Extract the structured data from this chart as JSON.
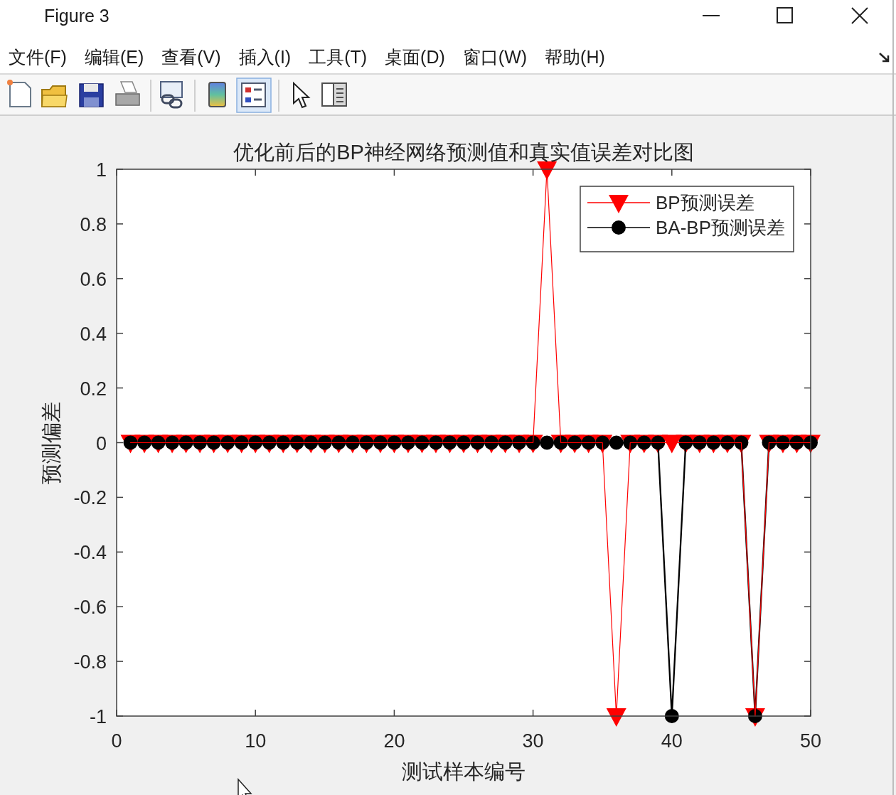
{
  "chart_data": {
    "type": "line",
    "title": "优化前后的BP神经网络预测值和真实值误差对比图",
    "xlabel": "测试样本编号",
    "ylabel": "预测偏差",
    "x": [
      1,
      2,
      3,
      4,
      5,
      6,
      7,
      8,
      9,
      10,
      11,
      12,
      13,
      14,
      15,
      16,
      17,
      18,
      19,
      20,
      21,
      22,
      23,
      24,
      25,
      26,
      27,
      28,
      29,
      30,
      31,
      32,
      33,
      34,
      35,
      36,
      37,
      38,
      39,
      40,
      41,
      42,
      43,
      44,
      45,
      46,
      47,
      48,
      49,
      50
    ],
    "series": [
      {
        "name": "BP预测误差",
        "color": "#ff0000",
        "marker": "triangle",
        "values": [
          0,
          0,
          0,
          0,
          0,
          0,
          0,
          0,
          0,
          0,
          0,
          0,
          0,
          0,
          0,
          0,
          0,
          0,
          0,
          0,
          0,
          0,
          0,
          0,
          0,
          0,
          0,
          0,
          0,
          0,
          1,
          0,
          0,
          0,
          0,
          -1,
          0,
          0,
          0,
          0,
          0,
          0,
          0,
          0,
          0,
          -1,
          0,
          0,
          0,
          0
        ]
      },
      {
        "name": "BA-BP预测误差",
        "color": "#000000",
        "marker": "circle",
        "values": [
          0,
          0,
          0,
          0,
          0,
          0,
          0,
          0,
          0,
          0,
          0,
          0,
          0,
          0,
          0,
          0,
          0,
          0,
          0,
          0,
          0,
          0,
          0,
          0,
          0,
          0,
          0,
          0,
          0,
          0,
          0,
          0,
          0,
          0,
          0,
          0,
          0,
          0,
          0,
          -1,
          0,
          0,
          0,
          0,
          0,
          -1,
          0,
          0,
          0,
          0
        ]
      }
    ],
    "xlim": [
      0,
      50
    ],
    "ylim": [
      -1,
      1
    ],
    "xticks": [
      0,
      10,
      20,
      30,
      40,
      50
    ],
    "yticks": [
      -1,
      -0.8,
      -0.6,
      -0.4,
      -0.2,
      0,
      0.2,
      0.4,
      0.6,
      0.8,
      1
    ],
    "legend": "top right",
    "annotations": [
      "Figure 3",
      "文件(F)",
      "编辑(E)",
      "查看(V)",
      "插入(I)",
      "工具(T)",
      "桌面(D)",
      "窗口(W)",
      "帮助(H)"
    ]
  }
}
